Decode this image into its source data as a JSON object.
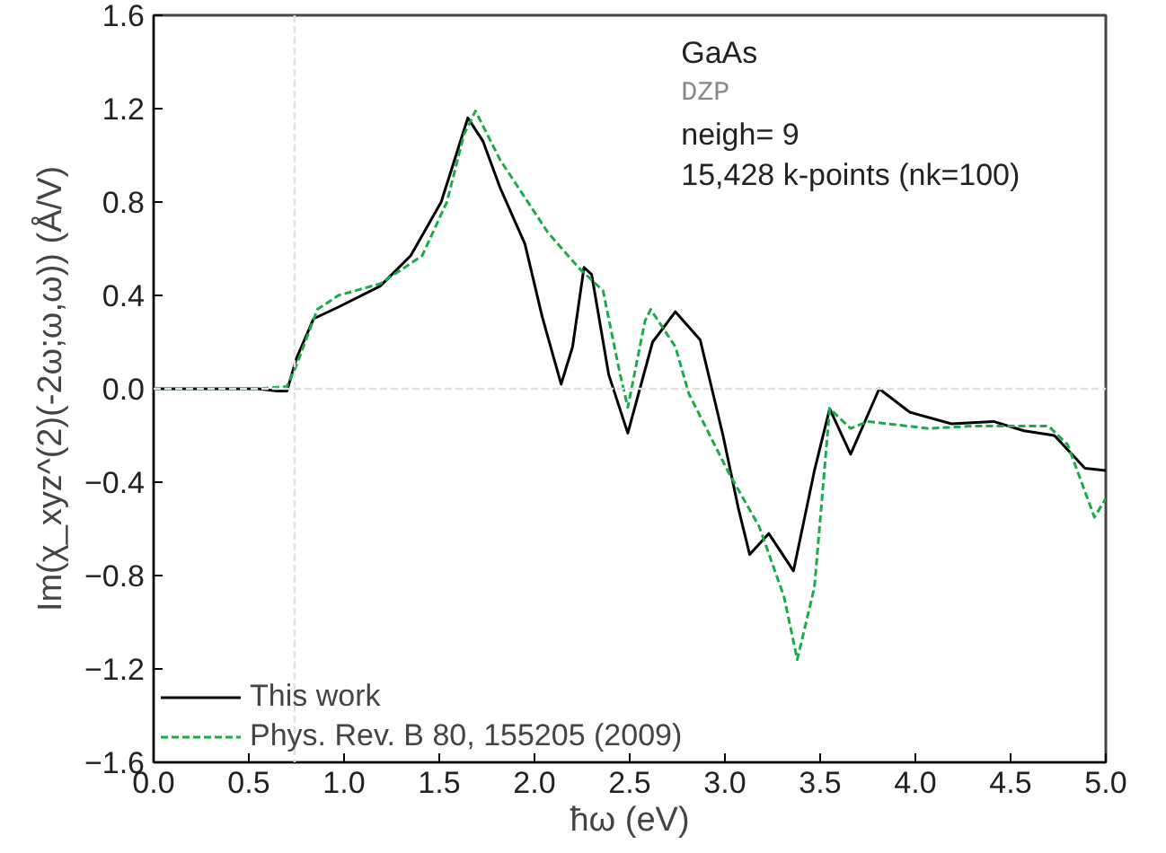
{
  "chart_data": {
    "type": "line",
    "xlabel": "ħω (eV)",
    "ylabel": "Im(χ_xyz^(2)(-2ω;ω,ω)) (Å/V)",
    "annotations": [
      "GaAs",
      "DZP",
      "neigh= 9",
      "15,428 k-points (nk=100)"
    ],
    "xlim": [
      0.0,
      5.0
    ],
    "ylim": [
      -1.6,
      1.6
    ],
    "xticks": [
      {
        "value": 0.0,
        "label": "0.0"
      },
      0.5,
      {
        "value": 1.0,
        "label": "1.0"
      },
      1.5,
      {
        "value": 2.0,
        "label": "2.0"
      },
      2.5,
      {
        "value": 3.0,
        "label": "3.0"
      },
      3.5,
      {
        "value": 4.0,
        "label": "4.0"
      },
      4.5,
      {
        "value": 5.0,
        "label": "5.0"
      }
    ],
    "yticks": [
      {
        "value": -1.6,
        "label": "−1.6"
      },
      {
        "value": -1.2,
        "label": "−1.2"
      },
      {
        "value": -0.8,
        "label": "−0.8"
      },
      {
        "value": -0.4,
        "label": "−0.4"
      },
      {
        "value": 0.0,
        "label": "0.0"
      },
      0.4,
      0.8,
      1.2,
      1.6
    ],
    "grid": false,
    "legend": "bottom left",
    "ref_lines": [
      {
        "axis": "x",
        "value": 0.74,
        "color": "#e0e0e0",
        "line_style": "dashed"
      },
      {
        "axis": "y",
        "value": 0.0,
        "color": "#e0e0e0",
        "line_style": "dashed"
      }
    ],
    "series": [
      {
        "name": "This work",
        "color": "#000000",
        "line_style": "solid",
        "x": [
          0.0,
          0.3,
          0.55,
          0.65,
          0.7,
          0.75,
          0.84,
          0.97,
          1.19,
          1.35,
          1.51,
          1.65,
          1.73,
          1.82,
          1.95,
          2.04,
          2.14,
          2.2,
          2.26,
          2.3,
          2.39,
          2.49,
          2.62,
          2.74,
          2.87,
          2.99,
          3.07,
          3.13,
          3.23,
          3.36,
          3.47,
          3.55,
          3.66,
          3.81,
          3.97,
          4.19,
          4.41,
          4.57,
          4.73,
          4.89,
          5.0
        ],
        "values": [
          0.0,
          0.0,
          0.0,
          -0.01,
          -0.01,
          0.13,
          0.3,
          0.35,
          0.44,
          0.57,
          0.8,
          1.16,
          1.06,
          0.86,
          0.62,
          0.31,
          0.02,
          0.18,
          0.52,
          0.49,
          0.06,
          -0.19,
          0.2,
          0.33,
          0.21,
          -0.2,
          -0.51,
          -0.71,
          -0.62,
          -0.78,
          -0.35,
          -0.085,
          -0.28,
          0.0,
          -0.1,
          -0.15,
          -0.14,
          -0.18,
          -0.2,
          -0.34,
          -0.35
        ]
      },
      {
        "name": "Phys. Rev. B 80, 155205 (2009)",
        "color": "#1aaa4a",
        "line_style": "dashed",
        "x": [
          0.0,
          0.3,
          0.55,
          0.7,
          0.75,
          0.86,
          0.97,
          1.19,
          1.41,
          1.54,
          1.63,
          1.69,
          1.82,
          2.07,
          2.23,
          2.36,
          2.45,
          2.49,
          2.58,
          2.61,
          2.74,
          2.81,
          3.02,
          3.18,
          3.31,
          3.38,
          3.47,
          3.55,
          3.66,
          3.75,
          4.07,
          4.29,
          4.51,
          4.7,
          4.8,
          4.94,
          5.0
        ],
        "values": [
          0.0,
          0.0,
          0.0,
          0.01,
          0.1,
          0.34,
          0.4,
          0.45,
          0.57,
          0.8,
          1.09,
          1.19,
          0.98,
          0.67,
          0.52,
          0.42,
          0.06,
          -0.08,
          0.29,
          0.34,
          0.18,
          -0.02,
          -0.36,
          -0.59,
          -0.89,
          -1.16,
          -0.85,
          -0.085,
          -0.17,
          -0.14,
          -0.17,
          -0.16,
          -0.16,
          -0.16,
          -0.24,
          -0.55,
          -0.47
        ]
      }
    ]
  }
}
